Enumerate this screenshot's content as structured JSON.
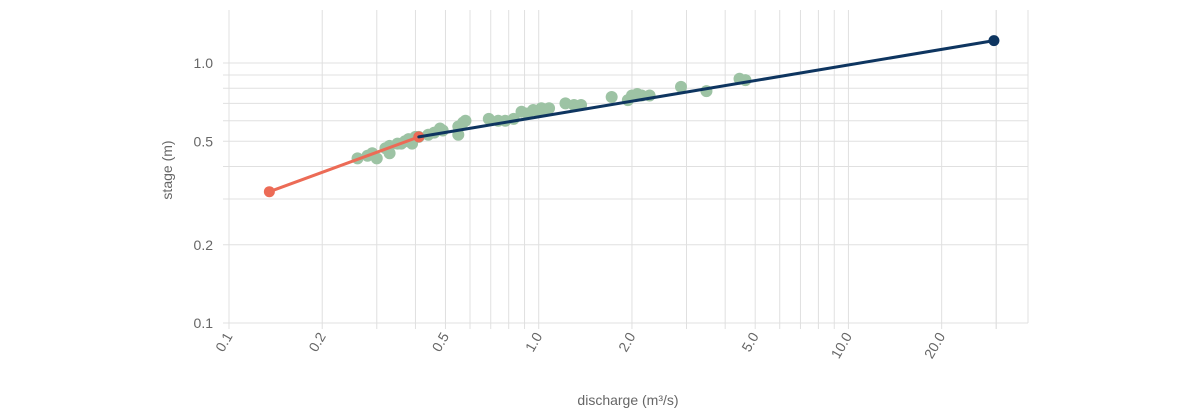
{
  "chart_data": {
    "type": "scatter",
    "xlabel": "discharge (m³/s)",
    "ylabel": "stage (m)",
    "x_scale": "log",
    "y_scale": "log",
    "xlim": [
      0.1,
      38
    ],
    "ylim": [
      0.1,
      1.6
    ],
    "x_ticks": [
      {
        "value": 0.1,
        "label": "0.1"
      },
      {
        "value": 0.2,
        "label": "0.2"
      },
      {
        "value": 0.5,
        "label": "0.5"
      },
      {
        "value": 1,
        "label": "1.0"
      },
      {
        "value": 2,
        "label": "2.0"
      },
      {
        "value": 5,
        "label": "5.0"
      },
      {
        "value": 10,
        "label": "10.0"
      },
      {
        "value": 20,
        "label": "20.0"
      }
    ],
    "y_ticks": [
      {
        "value": 0.1,
        "label": "0.1"
      },
      {
        "value": 0.2,
        "label": "0.2"
      },
      {
        "value": 0.5,
        "label": "0.5"
      },
      {
        "value": 1,
        "label": "1.0"
      }
    ],
    "grid": true,
    "colors": {
      "observations": "#9dc3a4",
      "low_segment": "#ec6b56",
      "high_segment": "#0e3560",
      "grid": "#e0e0e0",
      "text": "#666666"
    },
    "observations": [
      {
        "x": 0.26,
        "y": 0.43
      },
      {
        "x": 0.28,
        "y": 0.44
      },
      {
        "x": 0.29,
        "y": 0.45
      },
      {
        "x": 0.3,
        "y": 0.43
      },
      {
        "x": 0.32,
        "y": 0.47
      },
      {
        "x": 0.33,
        "y": 0.48
      },
      {
        "x": 0.33,
        "y": 0.45
      },
      {
        "x": 0.35,
        "y": 0.49
      },
      {
        "x": 0.36,
        "y": 0.49
      },
      {
        "x": 0.37,
        "y": 0.5
      },
      {
        "x": 0.38,
        "y": 0.51
      },
      {
        "x": 0.39,
        "y": 0.49
      },
      {
        "x": 0.4,
        "y": 0.52
      },
      {
        "x": 0.41,
        "y": 0.52
      },
      {
        "x": 0.44,
        "y": 0.53
      },
      {
        "x": 0.46,
        "y": 0.54
      },
      {
        "x": 0.48,
        "y": 0.56
      },
      {
        "x": 0.49,
        "y": 0.55
      },
      {
        "x": 0.55,
        "y": 0.57
      },
      {
        "x": 0.57,
        "y": 0.59
      },
      {
        "x": 0.55,
        "y": 0.53
      },
      {
        "x": 0.58,
        "y": 0.6
      },
      {
        "x": 0.69,
        "y": 0.61
      },
      {
        "x": 0.74,
        "y": 0.6
      },
      {
        "x": 0.78,
        "y": 0.6
      },
      {
        "x": 0.83,
        "y": 0.61
      },
      {
        "x": 0.88,
        "y": 0.65
      },
      {
        "x": 0.92,
        "y": 0.64
      },
      {
        "x": 0.96,
        "y": 0.66
      },
      {
        "x": 1.0,
        "y": 0.65
      },
      {
        "x": 1.02,
        "y": 0.67
      },
      {
        "x": 1.05,
        "y": 0.66
      },
      {
        "x": 1.08,
        "y": 0.67
      },
      {
        "x": 1.22,
        "y": 0.7
      },
      {
        "x": 1.3,
        "y": 0.69
      },
      {
        "x": 1.37,
        "y": 0.69
      },
      {
        "x": 1.72,
        "y": 0.74
      },
      {
        "x": 1.94,
        "y": 0.72
      },
      {
        "x": 2.0,
        "y": 0.75
      },
      {
        "x": 2.08,
        "y": 0.76
      },
      {
        "x": 2.15,
        "y": 0.75
      },
      {
        "x": 2.28,
        "y": 0.75
      },
      {
        "x": 2.88,
        "y": 0.81
      },
      {
        "x": 3.48,
        "y": 0.78
      },
      {
        "x": 4.45,
        "y": 0.87
      },
      {
        "x": 4.65,
        "y": 0.86
      }
    ],
    "fit_segments": [
      {
        "color_key": "low_segment",
        "points": [
          {
            "x": 0.135,
            "y": 0.32
          },
          {
            "x": 0.41,
            "y": 0.52
          }
        ],
        "end_markers": true
      },
      {
        "color_key": "high_segment",
        "points": [
          {
            "x": 0.41,
            "y": 0.52
          },
          {
            "x": 29.5,
            "y": 1.22
          }
        ],
        "end_markers": "end"
      }
    ]
  }
}
